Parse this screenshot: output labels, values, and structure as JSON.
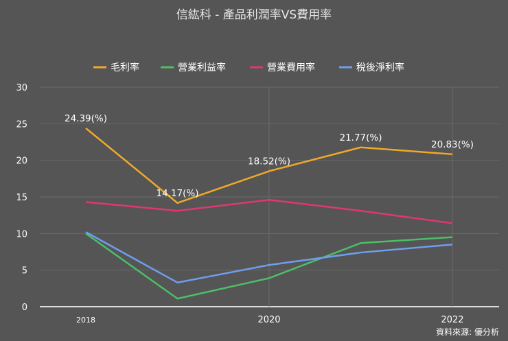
{
  "chart_data": {
    "type": "line",
    "title": "信紘科 - 產品利潤率VS費用率",
    "source": "資料來源: 優分析",
    "x": [
      2018,
      2019,
      2020,
      2021,
      2022
    ],
    "x_tick_labels": [
      "2018",
      "2020",
      "2022"
    ],
    "ylim": [
      0,
      30
    ],
    "y_ticks": [
      0,
      5,
      10,
      15,
      20,
      25,
      30
    ],
    "grid": true,
    "legend_position": "top",
    "series": [
      {
        "name": "毛利率",
        "color": "#f0a92a",
        "values": [
          24.39,
          14.17,
          18.52,
          21.77,
          20.83
        ],
        "data_labels": [
          "24.39(%)",
          "14.17(%)",
          "18.52(%)",
          "21.77(%)",
          "20.83(%)"
        ]
      },
      {
        "name": "營業利益率",
        "color": "#4cbf68",
        "values": [
          10.0,
          1.1,
          3.9,
          8.7,
          9.5
        ]
      },
      {
        "name": "營業費用率",
        "color": "#e0386e",
        "values": [
          14.3,
          13.1,
          14.6,
          13.1,
          11.4
        ]
      },
      {
        "name": "稅後淨利率",
        "color": "#6f9ef0",
        "values": [
          10.2,
          3.3,
          5.7,
          7.4,
          8.5
        ]
      }
    ]
  }
}
